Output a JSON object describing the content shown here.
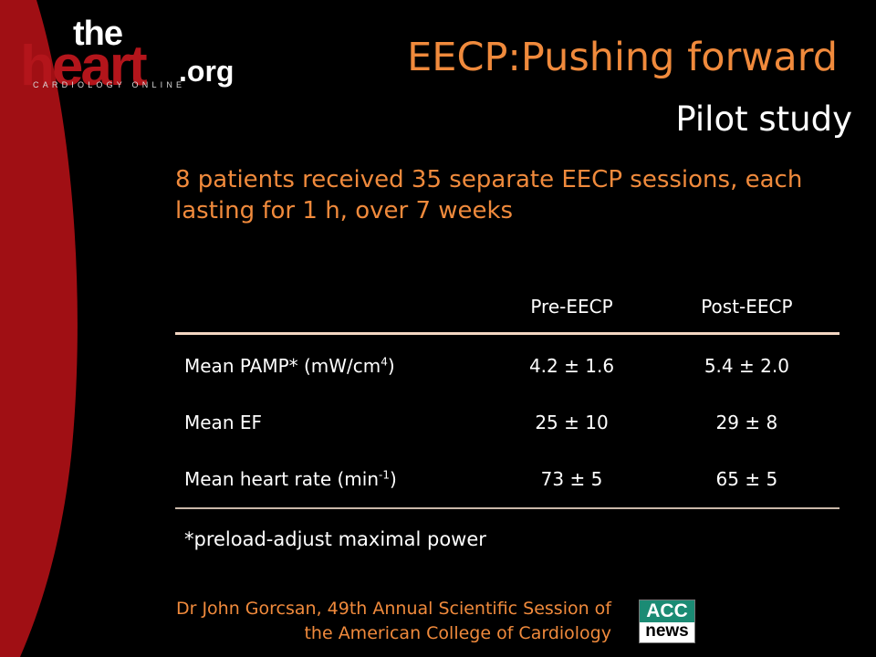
{
  "logo": {
    "the": "the",
    "heart": "heart",
    "org": ".org",
    "tagline": "CARDIOLOGY ONLINE"
  },
  "title": "EECP:Pushing forward",
  "subtitle": "Pilot study",
  "intro": "8 patients received 35 separate EECP sessions, each lasting for 1 h, over 7 weeks",
  "table": {
    "headers": [
      "",
      "Pre-EECP",
      "Post-EECP"
    ],
    "rows": [
      {
        "label": "Mean PAMP* (mW/cm",
        "sup": "4",
        "suffix": ")",
        "pre": "4.2 ± 1.6",
        "post": "5.4 ± 2.0"
      },
      {
        "label": "Mean EF",
        "sup": "",
        "suffix": "",
        "pre": "25 ± 10",
        "post": "29 ± 8"
      },
      {
        "label": "Mean heart rate (min",
        "sup": "-1",
        "suffix": ")",
        "pre": "73 ± 5",
        "post": "65 ± 5"
      }
    ],
    "footnote": "*preload-adjust maximal power"
  },
  "footer": {
    "line1": "Dr John Gorcsan, 49th Annual Scientific Session of",
    "line2": "the American College of Cardiology"
  },
  "acc_logo": {
    "top": "ACC",
    "bottom": "news"
  },
  "colors": {
    "accent": "#f08a3c",
    "arc": "#a00f14",
    "background": "#000000"
  }
}
